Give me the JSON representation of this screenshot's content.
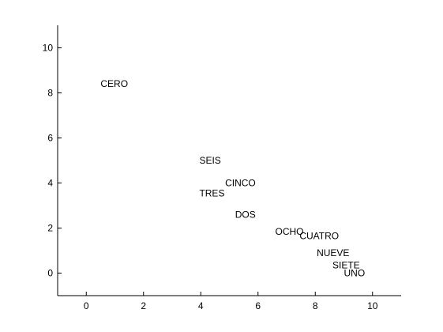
{
  "chart_data": {
    "type": "scatter",
    "title": "",
    "xlabel": "",
    "ylabel": "",
    "xlim": [
      -1,
      11
    ],
    "ylim": [
      -1,
      11
    ],
    "x_ticks": [
      0,
      2,
      4,
      6,
      8,
      10
    ],
    "y_ticks": [
      0,
      2,
      4,
      6,
      8,
      10
    ],
    "grid": false,
    "points": [
      {
        "label": "CERO",
        "x": 0.5,
        "y": 8.4
      },
      {
        "label": "SEIS",
        "x": 3.95,
        "y": 5.0
      },
      {
        "label": "CINCO",
        "x": 4.85,
        "y": 4.0
      },
      {
        "label": "TRES",
        "x": 3.95,
        "y": 3.55
      },
      {
        "label": "DOS",
        "x": 5.2,
        "y": 2.6
      },
      {
        "label": "OCHO",
        "x": 6.6,
        "y": 1.85
      },
      {
        "label": "CUATRO",
        "x": 7.45,
        "y": 1.65
      },
      {
        "label": "NUEVE",
        "x": 8.05,
        "y": 0.9
      },
      {
        "label": "SIETE",
        "x": 8.6,
        "y": 0.35
      },
      {
        "label": "UNO",
        "x": 9.0,
        "y": 0.0
      }
    ]
  }
}
